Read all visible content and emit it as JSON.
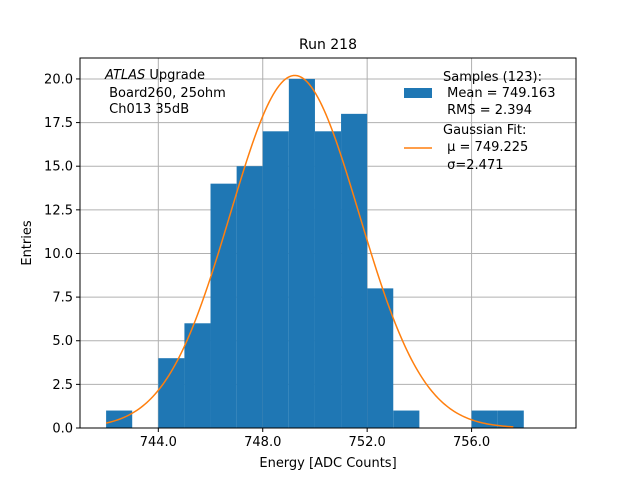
{
  "chart_data": {
    "type": "bar",
    "title": "Run 218",
    "xlabel": "Energy [ADC Counts]",
    "ylabel": "Entries",
    "xlim": [
      741.0,
      760.0
    ],
    "ylim": [
      0,
      21.2
    ],
    "grid": true,
    "x_ticks": [
      744,
      748,
      752,
      756
    ],
    "x_tick_labels": [
      "744.0",
      "748.0",
      "752.0",
      "756.0"
    ],
    "y_ticks": [
      0,
      2.5,
      5,
      7.5,
      10,
      12.5,
      15,
      17.5,
      20
    ],
    "y_tick_labels": [
      "0.0",
      "2.5",
      "5.0",
      "7.5",
      "10.0",
      "12.5",
      "15.0",
      "17.5",
      "20.0"
    ],
    "bin_width": 1,
    "histogram": {
      "name": "Samples",
      "color": "#1f77b4",
      "bin_left_edges": [
        742,
        744,
        745,
        746,
        747,
        748,
        749,
        750,
        751,
        752,
        753,
        756,
        757
      ],
      "counts": [
        1,
        4,
        6,
        14,
        15,
        17,
        20,
        17,
        18,
        8,
        1,
        1,
        1
      ]
    },
    "fit": {
      "name": "Gaussian Fit",
      "color": "#ff7f0e",
      "type": "gaussian",
      "amplitude": 20.2,
      "mu": 749.225,
      "sigma": 2.471,
      "x_range": [
        742.0,
        757.6
      ]
    },
    "annotation": {
      "italic": "ATLAS",
      "lines": [
        " Upgrade",
        " Board260, 25ohm",
        " Ch013 35dB"
      ]
    },
    "legend": {
      "position": "top-right",
      "hist_lines": [
        "Samples (123):",
        " Mean = 749.163",
        " RMS = 2.394"
      ],
      "fit_lines": [
        "Gaussian Fit:",
        " μ = 749.225",
        " σ=2.471"
      ]
    }
  }
}
